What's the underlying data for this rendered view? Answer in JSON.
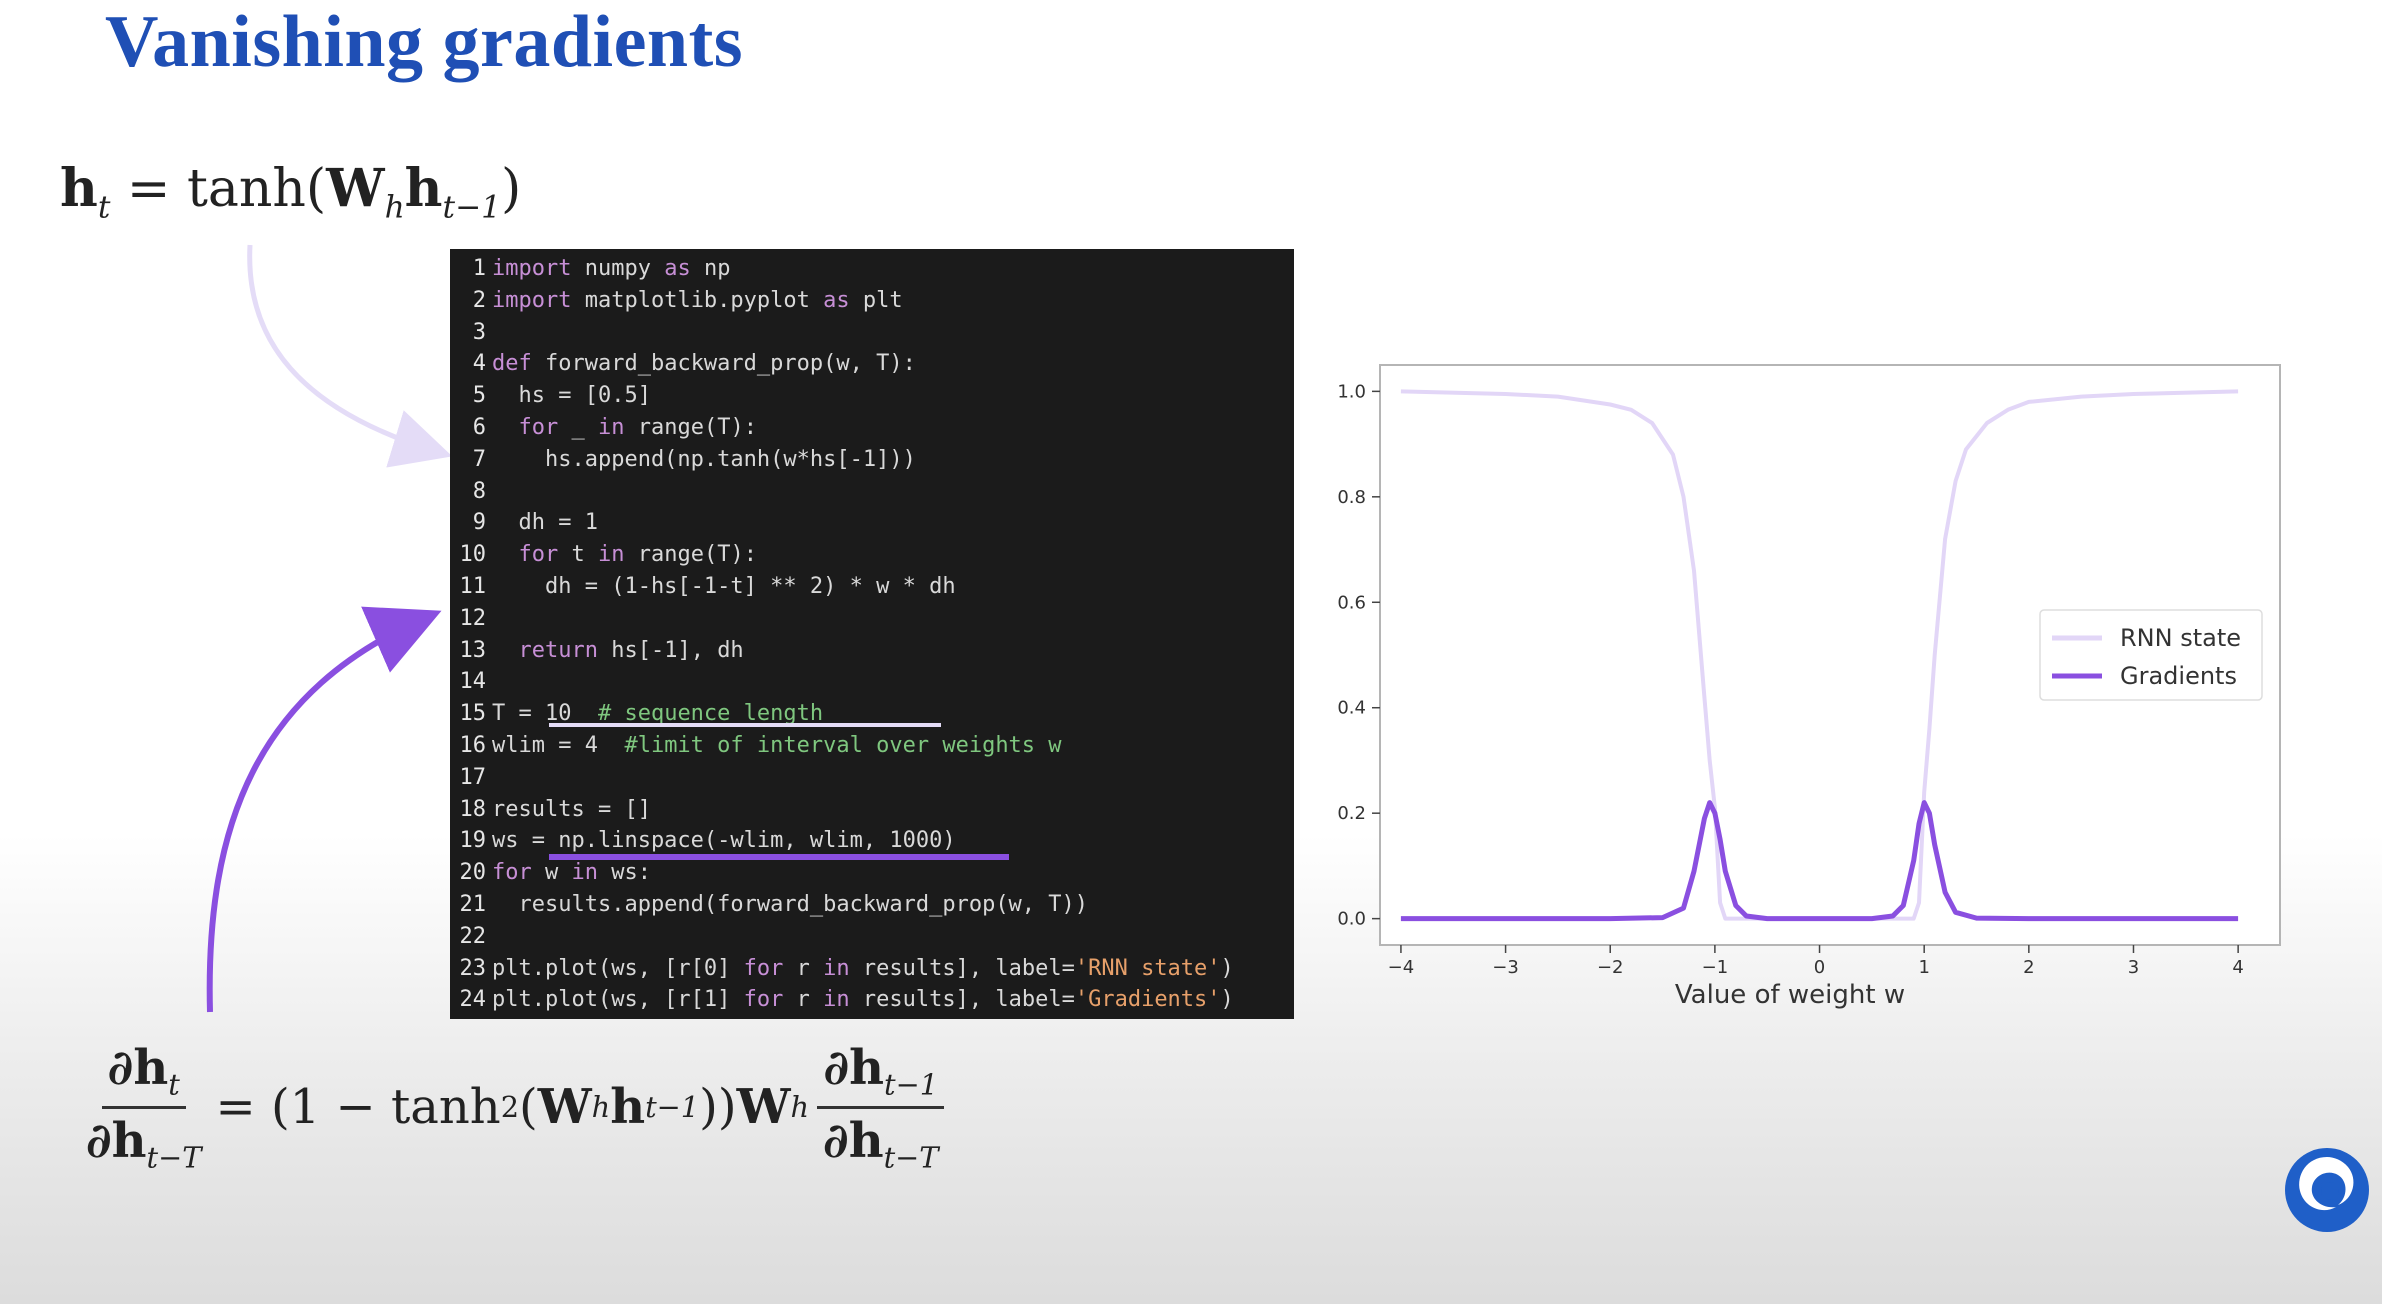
{
  "slide": {
    "title": "Vanishing gradients",
    "eq_top": {
      "h": "h",
      "t": "t",
      "eq": " = tanh(",
      "W": "W",
      "h_sub": "h",
      "h2": "h",
      "t_minus": "t−1",
      "close": ")"
    },
    "eq_bottom": {
      "num": "∂h",
      "num_sub": "t",
      "den": "∂h",
      "den_sub": "t−T",
      "mid": " = (1 − tanh",
      "sq": "2",
      "mid2": "(",
      "W": "W",
      "h_sub": "h",
      "h": "h",
      "t_minus": "t−1",
      "mid3": "))",
      "W2": "W",
      "h_sub2": "h",
      "num2": "∂h",
      "num2_sub": "t−1",
      "den2": "∂h",
      "den2_sub": "t−T"
    }
  },
  "code": {
    "lines": [
      {
        "n": "1",
        "parts": [
          {
            "k": "kw",
            "t": "import"
          },
          {
            "t": " numpy "
          },
          {
            "k": "kw",
            "t": "as"
          },
          {
            "t": " np"
          }
        ]
      },
      {
        "n": "2",
        "parts": [
          {
            "k": "kw",
            "t": "import"
          },
          {
            "t": " matplotlib.pyplot "
          },
          {
            "k": "kw",
            "t": "as"
          },
          {
            "t": " plt"
          }
        ]
      },
      {
        "n": "3",
        "parts": []
      },
      {
        "n": "4",
        "parts": [
          {
            "k": "kw",
            "t": "def"
          },
          {
            "t": " forward_backward_prop(w, T):"
          }
        ]
      },
      {
        "n": "5",
        "parts": [
          {
            "t": "  hs = [0.5]"
          }
        ]
      },
      {
        "n": "6",
        "parts": [
          {
            "t": "  "
          },
          {
            "k": "kw",
            "t": "for"
          },
          {
            "t": " _ "
          },
          {
            "k": "kw",
            "t": "in"
          },
          {
            "t": " range(T):"
          }
        ]
      },
      {
        "n": "7",
        "parts": [
          {
            "t": "    hs.append(np.tanh(w*hs[-1]))"
          }
        ]
      },
      {
        "n": "8",
        "parts": []
      },
      {
        "n": "9",
        "parts": [
          {
            "t": "  dh = 1"
          }
        ]
      },
      {
        "n": "10",
        "parts": [
          {
            "t": "  "
          },
          {
            "k": "kw",
            "t": "for"
          },
          {
            "t": " t "
          },
          {
            "k": "kw",
            "t": "in"
          },
          {
            "t": " range(T):"
          }
        ]
      },
      {
        "n": "11",
        "parts": [
          {
            "t": "    dh = (1-hs[-1-t] ** 2) * w * dh"
          }
        ]
      },
      {
        "n": "12",
        "parts": []
      },
      {
        "n": "13",
        "parts": [
          {
            "t": "  "
          },
          {
            "k": "kw",
            "t": "return"
          },
          {
            "t": " hs[-1], dh"
          }
        ]
      },
      {
        "n": "14",
        "parts": []
      },
      {
        "n": "15",
        "parts": [
          {
            "t": "T = 10  "
          },
          {
            "k": "cm",
            "t": "# sequence length"
          }
        ]
      },
      {
        "n": "16",
        "parts": [
          {
            "t": "wlim = 4  "
          },
          {
            "k": "cm",
            "t": "#limit of interval over weights w"
          }
        ]
      },
      {
        "n": "17",
        "parts": []
      },
      {
        "n": "18",
        "parts": [
          {
            "t": "results = []"
          }
        ]
      },
      {
        "n": "19",
        "parts": [
          {
            "t": "ws = np.linspace(-wlim, wlim, 1000)"
          }
        ]
      },
      {
        "n": "20",
        "parts": [
          {
            "k": "kw",
            "t": "for"
          },
          {
            "t": " w "
          },
          {
            "k": "kw",
            "t": "in"
          },
          {
            "t": " ws:"
          }
        ]
      },
      {
        "n": "21",
        "parts": [
          {
            "t": "  results.append(forward_backward_prop(w, T))"
          }
        ]
      },
      {
        "n": "22",
        "parts": []
      },
      {
        "n": "23",
        "parts": [
          {
            "t": "plt.plot(ws, [r[0] "
          },
          {
            "k": "kw",
            "t": "for"
          },
          {
            "t": " r "
          },
          {
            "k": "kw",
            "t": "in"
          },
          {
            "t": " results], label="
          },
          {
            "k": "st",
            "t": "'RNN state'"
          },
          {
            "t": ")"
          }
        ]
      },
      {
        "n": "24",
        "parts": [
          {
            "t": "plt.plot(ws, [r[1] "
          },
          {
            "k": "kw",
            "t": "for"
          },
          {
            "t": " r "
          },
          {
            "k": "kw",
            "t": "in"
          },
          {
            "t": " results], label="
          },
          {
            "k": "st",
            "t": "'Gradients'"
          },
          {
            "t": ")"
          }
        ]
      }
    ]
  },
  "chart_data": {
    "type": "line",
    "title": "",
    "xlabel": "Value of weight w",
    "ylabel": "",
    "xlim": [
      -4.2,
      4.4
    ],
    "ylim": [
      -0.05,
      1.05
    ],
    "xticks": [
      -4,
      -3,
      -2,
      -1,
      0,
      1,
      2,
      3,
      4
    ],
    "xtick_labels": [
      "−4",
      "−3",
      "−2",
      "−1",
      "0",
      "1",
      "2",
      "3",
      "4"
    ],
    "yticks": [
      0.0,
      0.2,
      0.4,
      0.6,
      0.8,
      1.0
    ],
    "ytick_labels": [
      "0.0",
      "0.2",
      "0.4",
      "0.6",
      "0.8",
      "1.0"
    ],
    "legend": "center-right",
    "grid": false,
    "series": [
      {
        "name": "RNN state",
        "color": "#e2d6f7",
        "x": [
          -4,
          -3,
          -2.5,
          -2,
          -1.8,
          -1.6,
          -1.4,
          -1.3,
          -1.2,
          -1.1,
          -1.05,
          -1.0,
          -0.95,
          -0.9,
          -0.5,
          0,
          0.5,
          0.9,
          0.95,
          1.0,
          1.05,
          1.1,
          1.2,
          1.3,
          1.4,
          1.6,
          1.8,
          2,
          2.5,
          3,
          4
        ],
        "y": [
          1.0,
          0.995,
          0.99,
          0.975,
          0.965,
          0.94,
          0.88,
          0.8,
          0.66,
          0.42,
          0.3,
          0.21,
          0.03,
          0.0,
          0.0,
          0.0,
          0.0,
          0.0,
          0.03,
          0.24,
          0.36,
          0.5,
          0.72,
          0.83,
          0.89,
          0.94,
          0.965,
          0.98,
          0.99,
          0.995,
          1.0
        ]
      },
      {
        "name": "Gradients",
        "color": "#8a4fe0",
        "x": [
          -4,
          -2,
          -1.5,
          -1.3,
          -1.2,
          -1.1,
          -1.05,
          -1.0,
          -0.95,
          -0.9,
          -0.8,
          -0.7,
          -0.5,
          0,
          0.5,
          0.7,
          0.8,
          0.9,
          0.95,
          1.0,
          1.05,
          1.1,
          1.2,
          1.3,
          1.5,
          2,
          4
        ],
        "y": [
          0.0,
          0.0,
          0.002,
          0.02,
          0.09,
          0.19,
          0.22,
          0.2,
          0.15,
          0.09,
          0.025,
          0.005,
          0.0,
          0.0,
          0.0,
          0.005,
          0.025,
          0.11,
          0.18,
          0.22,
          0.2,
          0.14,
          0.05,
          0.012,
          0.001,
          0.0,
          0.0
        ]
      }
    ]
  }
}
